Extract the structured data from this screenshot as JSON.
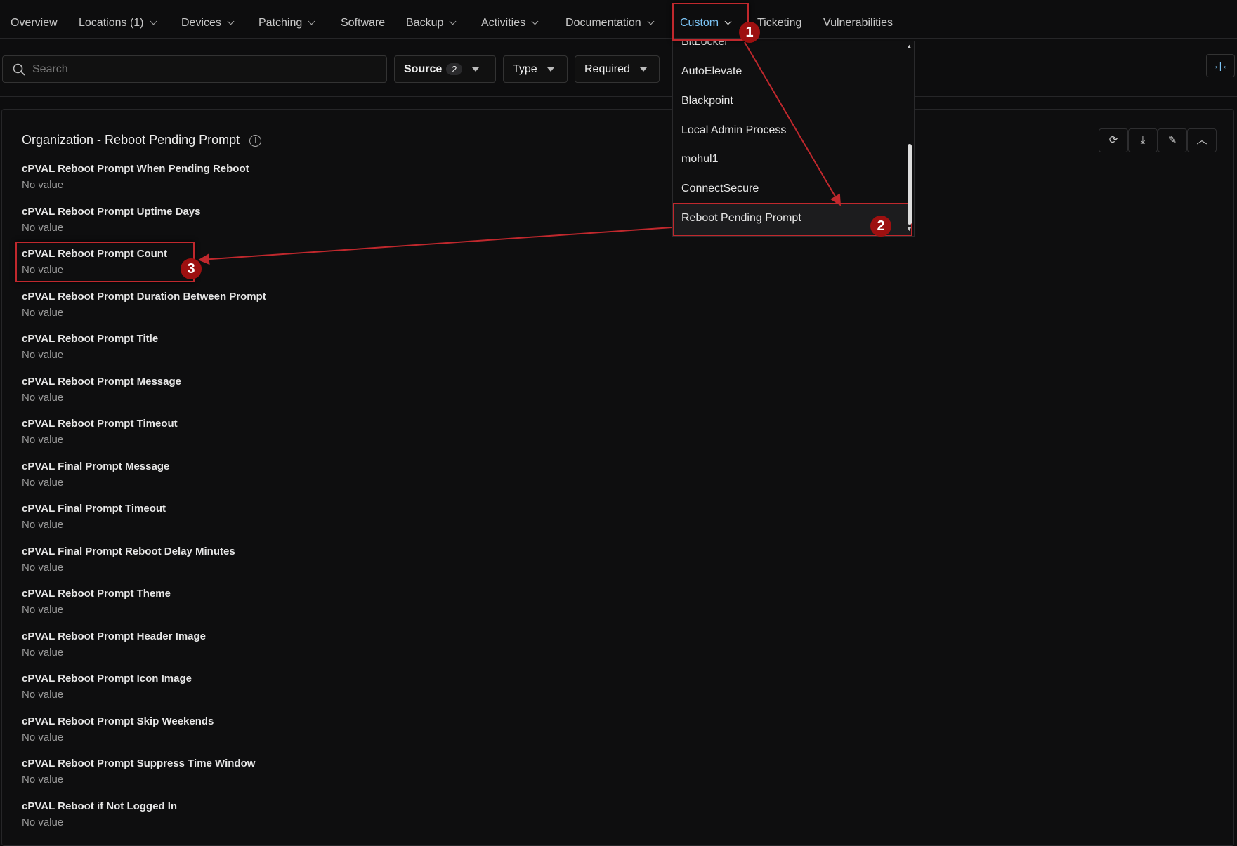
{
  "nav": {
    "items": [
      {
        "label": "Overview",
        "dropdown": false
      },
      {
        "label": "Locations (1)",
        "dropdown": true
      },
      {
        "label": "Devices",
        "dropdown": true
      },
      {
        "label": "Patching",
        "dropdown": true
      },
      {
        "label": "Software",
        "dropdown": false
      },
      {
        "label": "Backup",
        "dropdown": true
      },
      {
        "label": "Activities",
        "dropdown": true
      },
      {
        "label": "Documentation",
        "dropdown": true
      },
      {
        "label": "Custom",
        "dropdown": true,
        "active": true
      },
      {
        "label": "Ticketing",
        "dropdown": false
      },
      {
        "label": "Vulnerabilities",
        "dropdown": false
      }
    ]
  },
  "toolbar": {
    "search_placeholder": "Search",
    "source_label": "Source",
    "source_count": "2",
    "type_label": "Type",
    "required_label": "Required"
  },
  "dropdown": {
    "items": [
      "BitLocker",
      "AutoElevate",
      "Blackpoint",
      "Local Admin Process",
      "mohul1",
      "ConnectSecure",
      "Reboot Pending Prompt"
    ],
    "selected": "Reboot Pending Prompt"
  },
  "card": {
    "title": "Organization - Reboot Pending Prompt",
    "fields": [
      {
        "label": "cPVAL Reboot Prompt When Pending Reboot",
        "value": "No value"
      },
      {
        "label": "cPVAL Reboot Prompt Uptime Days",
        "value": "No value"
      },
      {
        "label": "cPVAL Reboot Prompt Count",
        "value": "No value"
      },
      {
        "label": "cPVAL Reboot Prompt Duration Between Prompt",
        "value": "No value"
      },
      {
        "label": "cPVAL Reboot Prompt Title",
        "value": "No value"
      },
      {
        "label": "cPVAL Reboot Prompt Message",
        "value": "No value"
      },
      {
        "label": "cPVAL Reboot Prompt Timeout",
        "value": "No value"
      },
      {
        "label": "cPVAL Final Prompt Message",
        "value": "No value"
      },
      {
        "label": "cPVAL Final Prompt Timeout",
        "value": "No value"
      },
      {
        "label": "cPVAL Final Prompt Reboot Delay Minutes",
        "value": "No value"
      },
      {
        "label": "cPVAL Reboot Prompt Theme",
        "value": "No value"
      },
      {
        "label": "cPVAL Reboot Prompt Header Image",
        "value": "No value"
      },
      {
        "label": "cPVAL Reboot Prompt Icon Image",
        "value": "No value"
      },
      {
        "label": "cPVAL Reboot Prompt Skip Weekends",
        "value": "No value"
      },
      {
        "label": "cPVAL Reboot Prompt Suppress Time Window",
        "value": "No value"
      },
      {
        "label": "cPVAL Reboot if Not Logged In",
        "value": "No value"
      }
    ]
  },
  "annotations": {
    "badges": [
      "1",
      "2",
      "3"
    ],
    "color": "#c0282d"
  },
  "colors": {
    "accent": "#7cc4f5",
    "background": "#0d0d0e"
  }
}
